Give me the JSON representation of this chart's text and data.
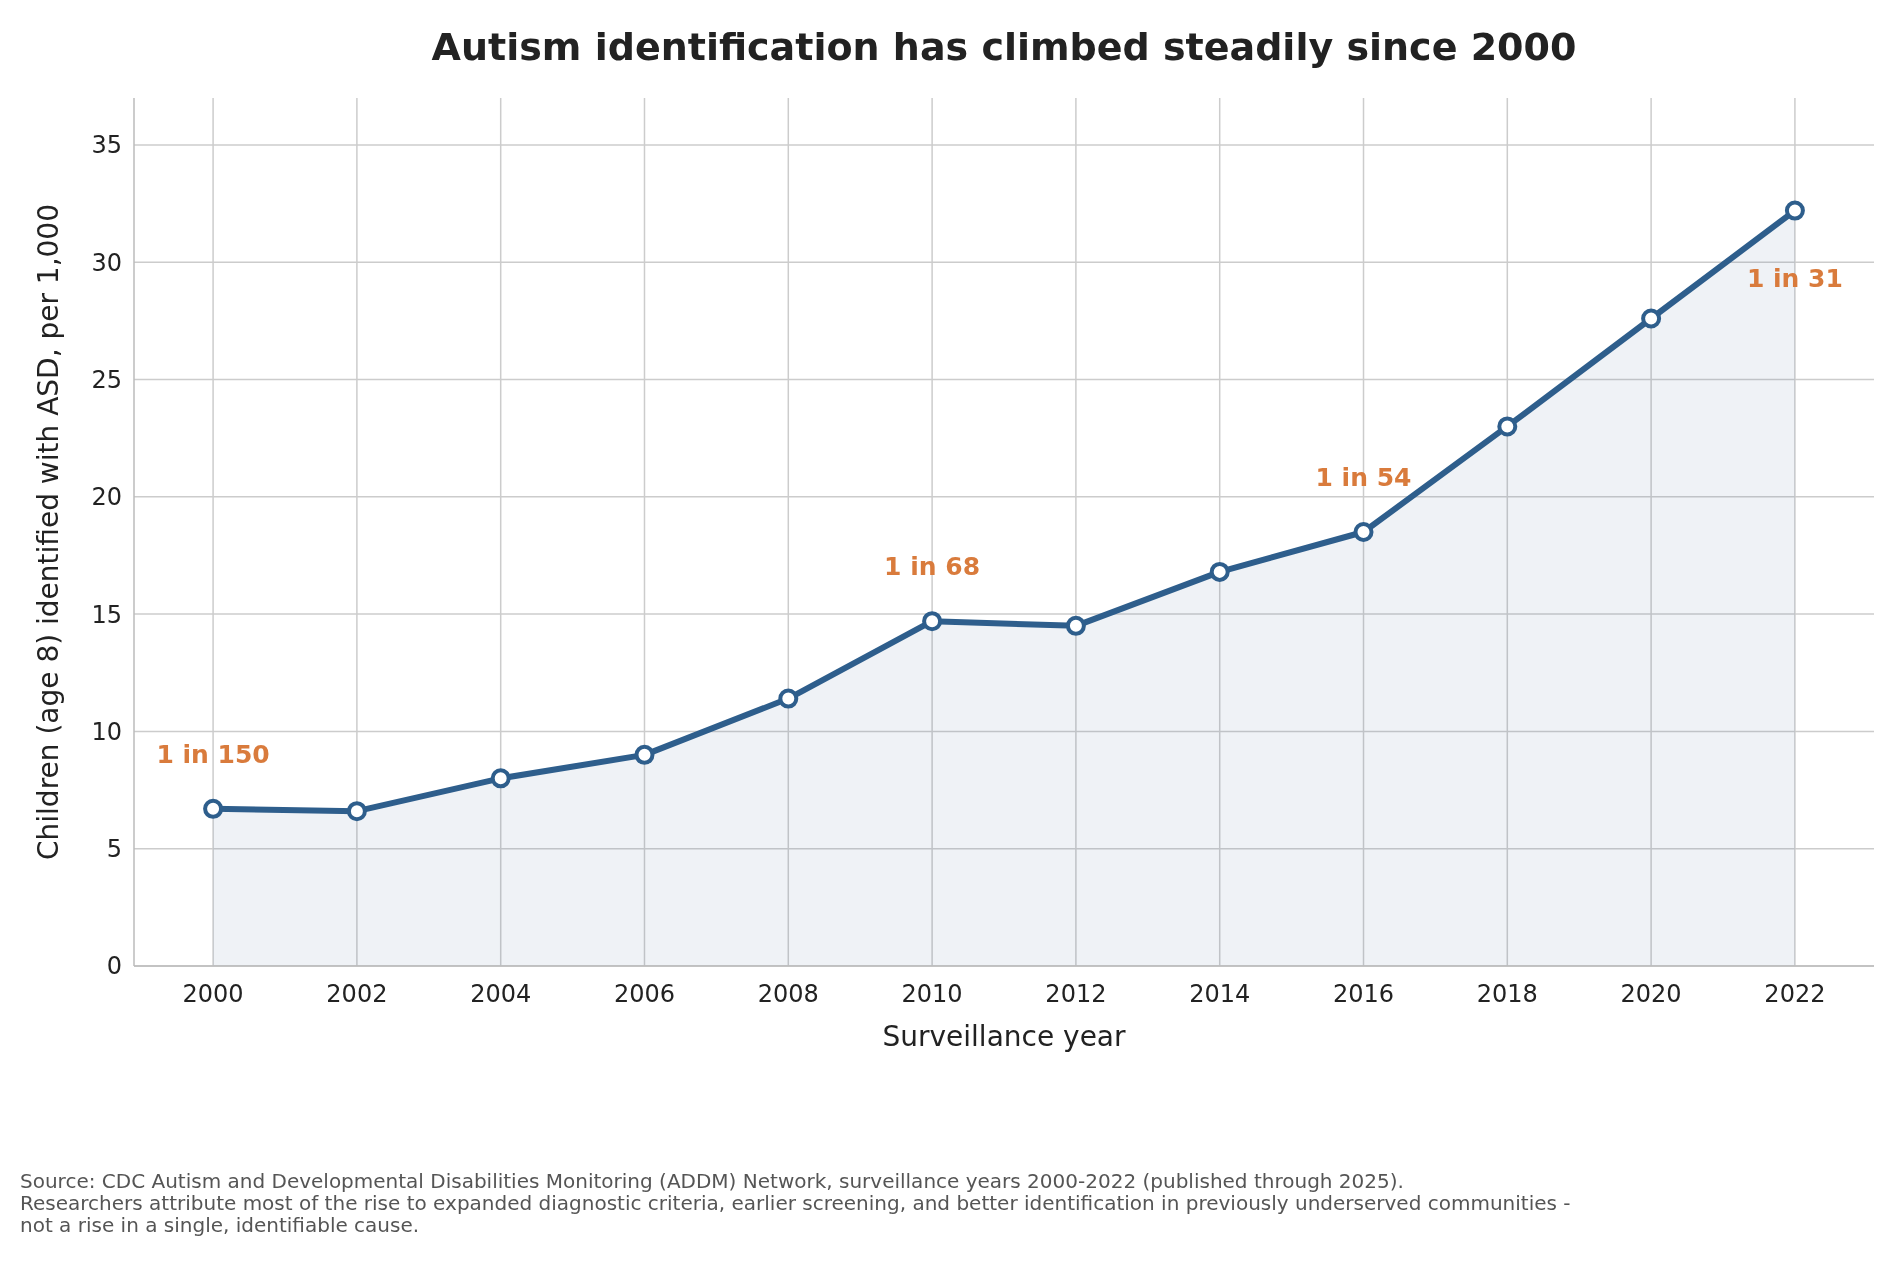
{
  "chart_data": {
    "type": "area",
    "title": "Autism identification has climbed steadily since 2000",
    "xlabel": "Surveillance year",
    "ylabel": "Children (age 8) identified with ASD, per 1,000",
    "x": [
      2000,
      2002,
      2004,
      2006,
      2008,
      2010,
      2012,
      2014,
      2016,
      2018,
      2020,
      2022
    ],
    "series": [
      {
        "color": "#2e5e8c",
        "values": [
          6.7,
          6.6,
          8.0,
          9.0,
          11.4,
          14.7,
          14.5,
          16.8,
          18.5,
          23.0,
          27.6,
          32.2
        ]
      }
    ],
    "xlim": [
      1998.9,
      2023.1
    ],
    "xticks": [
      2000,
      2002,
      2004,
      2006,
      2008,
      2010,
      2012,
      2014,
      2016,
      2018,
      2020,
      2022
    ],
    "ylim": [
      0,
      37
    ],
    "yticks": [
      0,
      5,
      10,
      15,
      20,
      25,
      30,
      35
    ],
    "grid": true,
    "marker": "circle",
    "line_style": "solid",
    "annotations": [
      {
        "text": "1 in 150",
        "x": 2000,
        "y": 6.7
      },
      {
        "text": "1 in 68",
        "x": 2010,
        "y": 14.7
      },
      {
        "text": "1 in 54",
        "x": 2016,
        "y": 18.5
      },
      {
        "text": "1 in 31",
        "x": 2022,
        "y": 32.2
      },
      "Source: CDC Autism and Developmental Disabilities Monitoring (ADDM) Network, surveillance years 2000-2022 (published through 2025).",
      "Researchers attribute most of the rise to expanded diagnostic criteria, earlier screening, and better identification in previously underserved communities - not a rise in a single, identifiable cause."
    ]
  }
}
